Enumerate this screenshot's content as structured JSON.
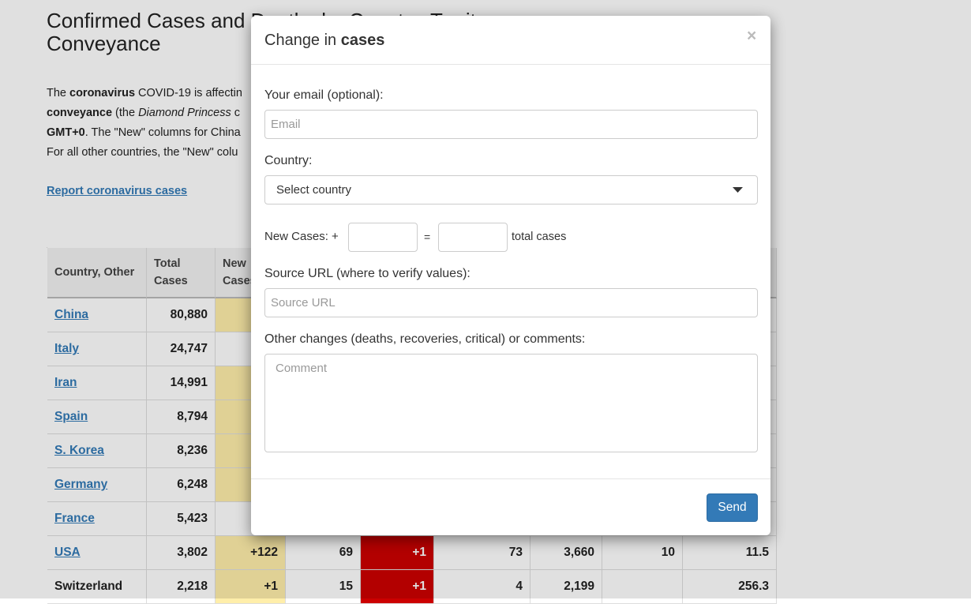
{
  "page": {
    "title": "Confirmed Cases and Deaths by Country, Territory, or Conveyance",
    "intro_lines": [
      [
        {
          "text": "The "
        },
        {
          "text": "coronavirus",
          "bold": true
        },
        {
          "text": " COVID-19 is affectin"
        }
      ],
      [
        {
          "text": "conveyance",
          "bold": true
        },
        {
          "text": " (the "
        },
        {
          "text": "Diamond Princess",
          "italic": true
        },
        {
          "text": " c"
        }
      ],
      [
        {
          "text": "GMT+0",
          "bold": true
        },
        {
          "text": ". The \"New\" columns for China"
        }
      ],
      [
        {
          "text": "For all other countries, the \"New\" colu"
        }
      ]
    ],
    "report_link": "Report coronavirus cases"
  },
  "table": {
    "headers": [
      "Country, Other",
      "Total Cases",
      "New Cases",
      null,
      null,
      null,
      null,
      null,
      null
    ],
    "rows": [
      [
        "China",
        "80,880",
        null,
        null,
        null,
        null,
        null,
        null,
        null
      ],
      [
        "Italy",
        "24,747",
        null,
        null,
        null,
        null,
        null,
        null,
        null
      ],
      [
        "Iran",
        "14,991",
        null,
        null,
        null,
        null,
        null,
        null,
        null
      ],
      [
        "Spain",
        "8,794",
        null,
        null,
        null,
        null,
        null,
        null,
        null
      ],
      [
        "S. Korea",
        "8,236",
        null,
        null,
        null,
        null,
        null,
        null,
        null
      ],
      [
        "Germany",
        "6,248",
        null,
        null,
        null,
        null,
        null,
        null,
        null
      ],
      [
        "France",
        "5,423",
        null,
        null,
        null,
        null,
        null,
        null,
        null
      ],
      [
        "USA",
        "3,802",
        "+122",
        "69",
        "+1",
        "73",
        "3,660",
        "10",
        "11.5"
      ],
      [
        "Switzerland",
        "2,218",
        "+1",
        "15",
        "+1",
        "4",
        "2,199",
        null,
        "256.3"
      ]
    ],
    "linked_countries": [
      true,
      true,
      true,
      true,
      true,
      true,
      true,
      true,
      false
    ],
    "new_cases_highlight": [
      true,
      false,
      true,
      true,
      true,
      true,
      false,
      true,
      true
    ]
  },
  "modal": {
    "title_prefix": "Change in ",
    "title_bold": "cases",
    "close": "×",
    "email_label": "Your email (optional):",
    "email_placeholder": "Email",
    "country_label": "Country:",
    "country_placeholder": "Select country",
    "new_cases_label": "New Cases: +",
    "equals": "=",
    "total_cases_label": "total cases",
    "source_label": "Source URL (where to verify values):",
    "source_placeholder": "Source URL",
    "comments_label": "Other changes (deaths, recoveries, critical) or comments:",
    "comment_placeholder": "Comment",
    "send": "Send"
  }
}
